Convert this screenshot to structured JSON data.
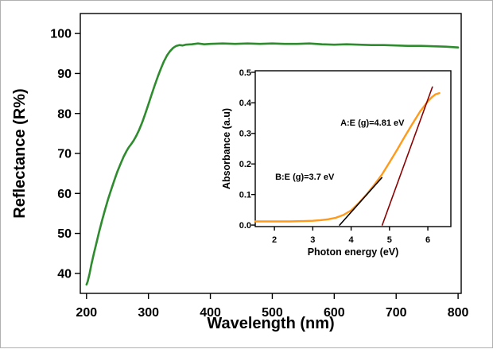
{
  "figure": {
    "background": "#ffffff",
    "frame_color": "#b0b0b0",
    "axis_color": "#000000"
  },
  "chart_data": [
    {
      "id": "main",
      "type": "line",
      "title": "",
      "xlabel": "Wavelength (nm)",
      "ylabel": "Reflectance (R%)",
      "xlim": [
        190,
        805
      ],
      "ylim": [
        35,
        105
      ],
      "xticks": [
        200,
        300,
        400,
        500,
        600,
        700,
        800
      ],
      "yticks": [
        40,
        50,
        60,
        70,
        80,
        90,
        100
      ],
      "tick_decimals": {
        "x": 0,
        "y": 0
      },
      "grid": false,
      "legend": "none",
      "series": [
        {
          "name": "reflectance-spectrum",
          "color": "#2e8b2e",
          "width": 2.6,
          "x": [
            200,
            202,
            205,
            208,
            212,
            216,
            220,
            225,
            230,
            235,
            240,
            245,
            250,
            255,
            260,
            265,
            268,
            272,
            276,
            280,
            285,
            290,
            295,
            300,
            305,
            310,
            315,
            320,
            325,
            330,
            335,
            340,
            345,
            350,
            355,
            360,
            370,
            380,
            390,
            400,
            420,
            440,
            460,
            480,
            500,
            520,
            540,
            560,
            580,
            600,
            620,
            640,
            660,
            680,
            700,
            720,
            740,
            760,
            780,
            800
          ],
          "y": [
            37.2,
            38.0,
            40.0,
            42.3,
            45.0,
            47.6,
            50.2,
            53.2,
            56.0,
            58.6,
            61.0,
            63.3,
            65.5,
            67.4,
            69.2,
            70.7,
            71.5,
            72.3,
            73.2,
            74.3,
            75.9,
            77.8,
            80.0,
            82.3,
            84.7,
            87.0,
            89.2,
            91.2,
            93.0,
            94.5,
            95.6,
            96.4,
            96.9,
            97.1,
            97.0,
            97.2,
            97.3,
            97.5,
            97.3,
            97.4,
            97.5,
            97.4,
            97.5,
            97.4,
            97.5,
            97.4,
            97.4,
            97.5,
            97.3,
            97.2,
            97.3,
            97.2,
            97.1,
            97.1,
            97.0,
            96.9,
            96.9,
            96.8,
            96.7,
            96.5
          ]
        }
      ],
      "annotations": []
    },
    {
      "id": "inset",
      "type": "line",
      "title": "",
      "xlabel": "Photon energy (eV)",
      "ylabel": "Absorbance (a.u)",
      "xlim": [
        1.5,
        6.6
      ],
      "ylim": [
        -0.005,
        0.505
      ],
      "xticks": [
        2,
        3,
        4,
        5,
        6
      ],
      "yticks": [
        0.0,
        0.1,
        0.2,
        0.3,
        0.4,
        0.5
      ],
      "tick_decimals": {
        "x": 0,
        "y": 1
      },
      "grid": false,
      "legend": "none",
      "series": [
        {
          "name": "absorbance-curve",
          "color": "#ff9a1a",
          "width": 2.4,
          "x": [
            1.5,
            1.8,
            2.1,
            2.4,
            2.7,
            3.0,
            3.2,
            3.4,
            3.6,
            3.8,
            4.0,
            4.2,
            4.4,
            4.6,
            4.8,
            5.0,
            5.2,
            5.4,
            5.6,
            5.8,
            6.0,
            6.1,
            6.2,
            6.3
          ],
          "y": [
            0.012,
            0.012,
            0.012,
            0.012,
            0.013,
            0.014,
            0.016,
            0.019,
            0.024,
            0.033,
            0.048,
            0.072,
            0.1,
            0.131,
            0.165,
            0.205,
            0.247,
            0.29,
            0.332,
            0.372,
            0.405,
            0.418,
            0.428,
            0.432
          ]
        },
        {
          "name": "tangent-line-B",
          "color": "#000000",
          "width": 1.6,
          "x": [
            3.7,
            4.8
          ],
          "y": [
            0.0,
            0.155
          ]
        },
        {
          "name": "tangent-line-A",
          "color": "#8b0000",
          "width": 1.6,
          "x": [
            4.81,
            6.12
          ],
          "y": [
            0.0,
            0.452
          ]
        }
      ],
      "annotations": [
        {
          "text": "A:E (g)=4.81 eV",
          "x": 3.72,
          "y": 0.325
        },
        {
          "text": "B:E (g)=3.7 eV",
          "x": 2.02,
          "y": 0.148
        }
      ]
    }
  ]
}
